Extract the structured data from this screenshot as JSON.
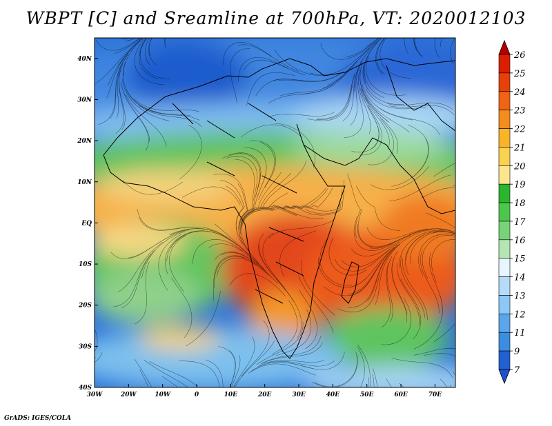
{
  "title": "WBPT [C] and Sreamline at 700hPa, VT: 2020012103",
  "footer": "GrADS: IGES/COLA",
  "map": {
    "region": "Africa and Indian Ocean",
    "lon_range": [
      -30,
      76
    ],
    "lat_range": [
      -40,
      45
    ],
    "x_ticks": [
      "30W",
      "20W",
      "10W",
      "0",
      "10E",
      "20E",
      "30E",
      "40E",
      "50E",
      "60E",
      "70E"
    ],
    "y_ticks": [
      "40N",
      "30N",
      "20N",
      "10N",
      "EQ",
      "10S",
      "20S",
      "30S",
      "40S"
    ],
    "overlays": [
      "coastlines",
      "country borders",
      "streamlines"
    ]
  },
  "colorbar": {
    "labels": [
      "26",
      "25",
      "24",
      "23",
      "22",
      "21",
      "20",
      "19",
      "18",
      "17",
      "16",
      "15",
      "14",
      "13",
      "12",
      "11",
      "9",
      "7"
    ],
    "colors": [
      "#b40000",
      "#dc1e00",
      "#e6410a",
      "#f06414",
      "#f58c1e",
      "#fab428",
      "#fad250",
      "#fbe68c",
      "#2bb42d",
      "#4bc84b",
      "#78d278",
      "#b4e6b4",
      "#e6f5ff",
      "#b4dcfa",
      "#8cc8f5",
      "#5aa5eb",
      "#3c8ce1",
      "#2361d2",
      "#1e50c8"
    ]
  }
}
